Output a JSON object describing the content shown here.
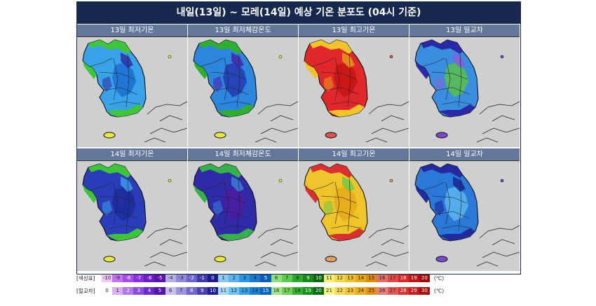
{
  "title": "내일(13일) ~ 모레(14일) 예상 기온 분포도 (04시 기준)",
  "panels": [
    {
      "label": "13일 최저기온",
      "scheme": "min13"
    },
    {
      "label": "13일 최저체감온도",
      "scheme": "feel13"
    },
    {
      "label": "13일 최고기온",
      "scheme": "max13"
    },
    {
      "label": "13일 일교차",
      "scheme": "range13"
    },
    {
      "label": "14일 최저기온",
      "scheme": "min14"
    },
    {
      "label": "14일 최저체감온도",
      "scheme": "feel14"
    },
    {
      "label": "14일 최고기온",
      "scheme": "max14"
    },
    {
      "label": "14일 일교차",
      "scheme": "range14"
    }
  ],
  "legend": {
    "temp_label": "[색상표]",
    "range_label": "[일교차]",
    "unit": "(℃)",
    "temp_values": [
      "-10",
      "-9",
      "-8",
      "-7",
      "-6",
      "-5",
      "-4",
      "-3",
      "-2",
      "-1",
      "0",
      "1",
      "2",
      "3",
      "4",
      "5",
      "6",
      "7",
      "8",
      "9",
      "10",
      "11",
      "12",
      "13",
      "14",
      "15",
      "16",
      "17",
      "18",
      "19",
      "20"
    ],
    "range_values": [
      "0",
      "1",
      "2",
      "3",
      "4",
      "5",
      "6",
      "7",
      "8",
      "9",
      "10",
      "11",
      "12",
      "13",
      "14",
      "15",
      "16",
      "17",
      "18",
      "19",
      "20",
      "21",
      "22",
      "23",
      "24",
      "25",
      "26",
      "27",
      "28",
      "29",
      "30"
    ],
    "temp_colors": [
      "#f0c6f5",
      "#c772f0",
      "#a64ce8",
      "#8a2fe0",
      "#6d1cc8",
      "#5a12a8",
      "#b8b0e8",
      "#8f88d8",
      "#6a62c8",
      "#3f3aa8",
      "#1c1a8c",
      "#8ec8f0",
      "#5cb2ec",
      "#2f94e0",
      "#1a78d0",
      "#0a5cb8",
      "#8ee07a",
      "#5ccc4a",
      "#2ca82a",
      "#148a18",
      "#0a6410",
      "#f6f07a",
      "#f2d84a",
      "#eec22a",
      "#e8a818",
      "#e08a10",
      "#e07070",
      "#e04a4a",
      "#d62828",
      "#c01414",
      "#a00a0a"
    ],
    "range_colors": [
      "#ffffff",
      "#d8b0f0",
      "#b07ae8",
      "#8c4ee0",
      "#6a2ccc",
      "#5216a8",
      "#c6c0ec",
      "#9c94dc",
      "#7068c8",
      "#4a40b0",
      "#222090",
      "#a8d8f4",
      "#6ec0ee",
      "#3a9ee2",
      "#1c80d2",
      "#0a62bc",
      "#a4e48e",
      "#6ed058",
      "#36ae30",
      "#188e1c",
      "#0a6a12",
      "#f8f28a",
      "#f4dc56",
      "#f0c636",
      "#eaac20",
      "#e29018",
      "#e48080",
      "#e25656",
      "#d83232",
      "#c41c1c",
      "#a40e0e"
    ]
  }
}
